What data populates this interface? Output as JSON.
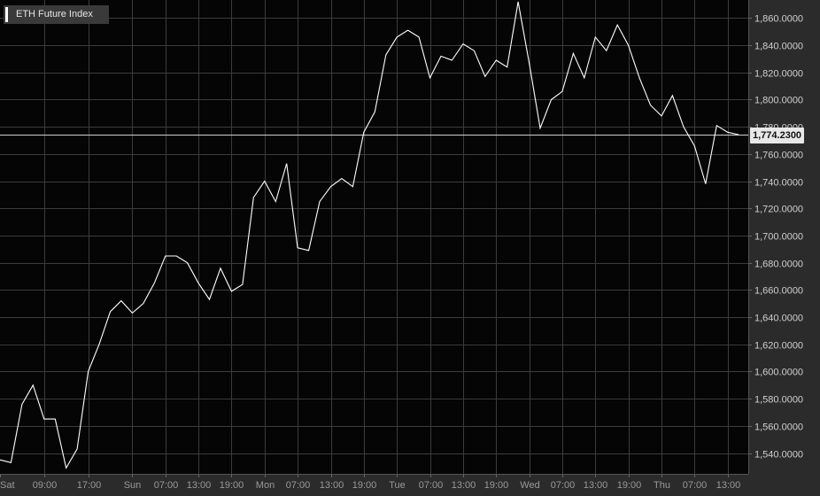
{
  "legend": {
    "series_name": "ETH Future Index",
    "series_color": "#ffffff"
  },
  "last_price": {
    "label": "1,774.2300",
    "value": 1774.23
  },
  "colors": {
    "background": "#2b2b2b",
    "plot": "#050505",
    "grid": "#3c3c3c",
    "line": "#ffffff",
    "tick_text": "#9a9a9a",
    "price_tag": "#e8e8e8"
  },
  "chart_data": {
    "type": "line",
    "title": "",
    "xlabel": "",
    "ylabel": "",
    "grid": true,
    "ylim": [
      1526,
      1872
    ],
    "y_ticks": [
      {
        "value": 1540,
        "label": "1,540.0000"
      },
      {
        "value": 1560,
        "label": "1,560.0000"
      },
      {
        "value": 1580,
        "label": "1,580.0000"
      },
      {
        "value": 1600,
        "label": "1,600.0000"
      },
      {
        "value": 1620,
        "label": "1,620.0000"
      },
      {
        "value": 1640,
        "label": "1,640.0000"
      },
      {
        "value": 1660,
        "label": "1,660.0000"
      },
      {
        "value": 1680,
        "label": "1,680.0000"
      },
      {
        "value": 1700,
        "label": "1,700.0000"
      },
      {
        "value": 1720,
        "label": "1,720.0000"
      },
      {
        "value": 1740,
        "label": "1,740.0000"
      },
      {
        "value": 1760,
        "label": "1,760.0000"
      },
      {
        "value": 1780,
        "label": "1,780.0000"
      },
      {
        "value": 1800,
        "label": "1,800.0000"
      },
      {
        "value": 1820,
        "label": "1,820.0000"
      },
      {
        "value": 1840,
        "label": "1,840.0000"
      },
      {
        "value": 1860,
        "label": "1,860.0000"
      }
    ],
    "x_ticks": [
      {
        "index": 0,
        "label": "Sat"
      },
      {
        "index": 4,
        "label": "09:00"
      },
      {
        "index": 8,
        "label": "17:00"
      },
      {
        "index": 12,
        "label": "Sun"
      },
      {
        "index": 15,
        "label": "07:00"
      },
      {
        "index": 18,
        "label": "13:00"
      },
      {
        "index": 21,
        "label": "19:00"
      },
      {
        "index": 24,
        "label": "Mon"
      },
      {
        "index": 27,
        "label": "07:00"
      },
      {
        "index": 30,
        "label": "13:00"
      },
      {
        "index": 33,
        "label": "19:00"
      },
      {
        "index": 36,
        "label": "Tue"
      },
      {
        "index": 39,
        "label": "07:00"
      },
      {
        "index": 42,
        "label": "13:00"
      },
      {
        "index": 45,
        "label": "19:00"
      },
      {
        "index": 48,
        "label": "Wed"
      },
      {
        "index": 51,
        "label": "07:00"
      },
      {
        "index": 54,
        "label": "13:00"
      },
      {
        "index": 57,
        "label": "19:00"
      },
      {
        "index": 60,
        "label": "Thu"
      },
      {
        "index": 63,
        "label": "07:00"
      },
      {
        "index": 66,
        "label": "13:00"
      }
    ],
    "series": [
      {
        "name": "ETH Future Index",
        "color": "#ffffff",
        "values": [
          1535,
          1533,
          1576,
          1590,
          1565,
          1565,
          1529,
          1543,
          1600,
          1620,
          1644,
          1652,
          1643,
          1650,
          1665,
          1685,
          1685,
          1680,
          1665,
          1653,
          1676,
          1659,
          1664,
          1728,
          1740,
          1725,
          1753,
          1691,
          1689,
          1725,
          1736,
          1742,
          1736,
          1776,
          1791,
          1833,
          1846,
          1851,
          1846,
          1816,
          1832,
          1829,
          1841,
          1836,
          1817,
          1829,
          1824,
          1872,
          1827,
          1779,
          1800,
          1806,
          1834,
          1816,
          1846,
          1836,
          1855,
          1840,
          1816,
          1796,
          1788,
          1803,
          1780,
          1766,
          1738,
          1781,
          1776,
          1774.23
        ]
      }
    ]
  }
}
